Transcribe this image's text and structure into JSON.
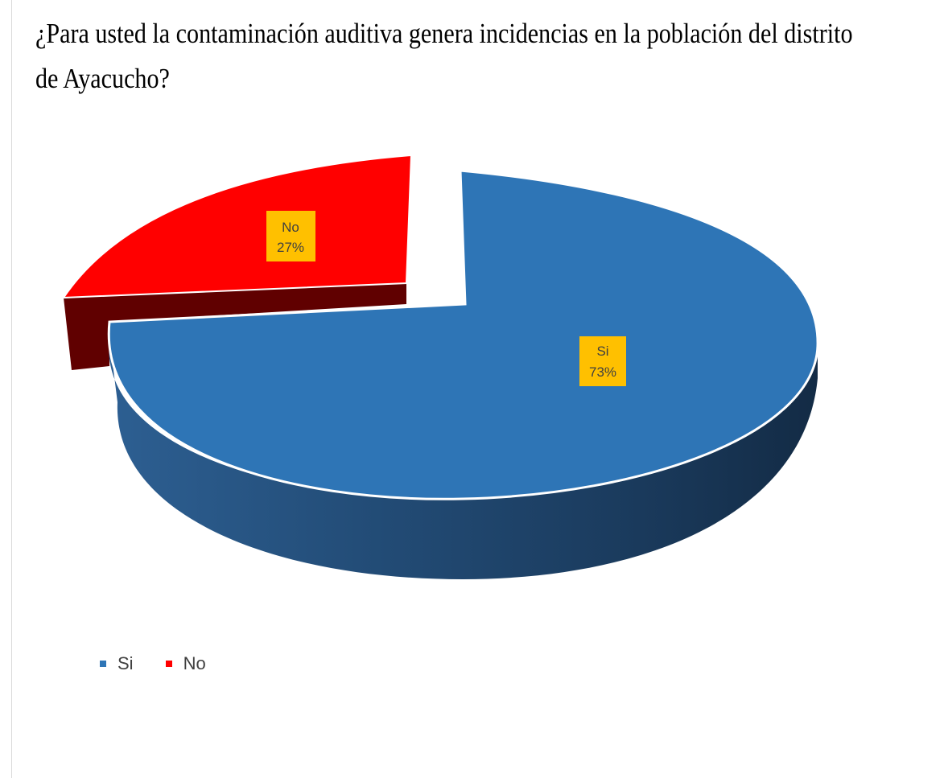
{
  "title_line1": "¿Para usted la contaminación auditiva genera incidencias en la población del distrito",
  "title_line2": "de Ayacucho?",
  "chart_data": {
    "type": "pie",
    "title": "¿Para usted la contaminación auditiva genera incidencias en la población del distrito de Ayacucho?",
    "categories": [
      "Si",
      "No"
    ],
    "values": [
      73,
      27
    ],
    "data_labels": [
      {
        "name": "Si",
        "value": "73%"
      },
      {
        "name": "No",
        "value": "27%"
      }
    ],
    "colors": [
      "#2e75b6",
      "#ff0000"
    ],
    "label_background": "#ffc000",
    "legend_position": "bottom-left",
    "style": "3d-exploded"
  }
}
